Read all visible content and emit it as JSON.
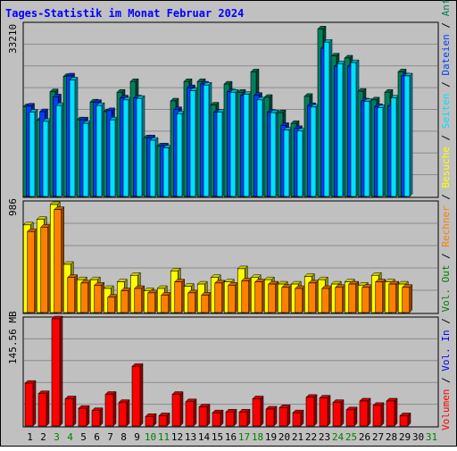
{
  "title": "Tages-Statistik im Monat Februar 2024",
  "colors": {
    "title": "#0000ff",
    "frame_bg": "#c0c0c0",
    "plot_bg": "#c0c0c0",
    "grid": "#8a8a8a",
    "anfragen": "#00805c",
    "dateien": "#0040ff",
    "seiten": "#00e0ff",
    "besuche": "#ffff00",
    "rechner": "#ff8000",
    "volumen": "#ff0000",
    "vol_in": "#0000ff",
    "vol_out": "#008000",
    "legend_sep": "#000000",
    "day_weekday": "#000000",
    "day_weekend": "#008000"
  },
  "panel_labels": {
    "top_max": "33210",
    "middle_max": "986",
    "bottom_max": "145.56 MB"
  },
  "legend": {
    "anfragen": "Anfragen",
    "dateien": "Dateien",
    "seiten": "Seiten",
    "besuche": "Besuche",
    "rechner": "Rechner",
    "vol_out": "Vol. Out",
    "vol_in": "Vol. In",
    "volumen": "Volumen",
    "sep": " / "
  },
  "chart_data": [
    {
      "type": "bar",
      "title": "Tages-Statistik im Monat Februar 2024",
      "panel": "top",
      "ylim": [
        0,
        33210
      ],
      "categories": [
        "1",
        "2",
        "3",
        "4",
        "5",
        "6",
        "7",
        "8",
        "9",
        "10",
        "11",
        "12",
        "13",
        "14",
        "15",
        "16",
        "17",
        "18",
        "19",
        "20",
        "21",
        "22",
        "23",
        "24",
        "25",
        "26",
        "27",
        "28",
        "29"
      ],
      "series": [
        {
          "name": "Anfragen",
          "values": [
            17600,
            14900,
            20500,
            23500,
            15000,
            18500,
            16600,
            20400,
            22500,
            11500,
            9900,
            18700,
            22500,
            22500,
            17900,
            22000,
            20400,
            24400,
            19400,
            16400,
            14300,
            19600,
            32800,
            27500,
            27100,
            20600,
            18900,
            20400,
            24400
          ]
        },
        {
          "name": "Dateien",
          "values": [
            17700,
            16600,
            19500,
            23600,
            15000,
            18400,
            16800,
            19300,
            19300,
            11500,
            9900,
            17000,
            21300,
            22000,
            16500,
            20500,
            19800,
            19800,
            16500,
            13900,
            13300,
            17800,
            29000,
            25500,
            25500,
            18700,
            17600,
            17700,
            23600
          ]
        },
        {
          "name": "Seiten",
          "values": [
            16500,
            14700,
            17800,
            22800,
            14300,
            17800,
            15000,
            18900,
            19200,
            11000,
            9500,
            16200,
            20700,
            21800,
            16500,
            20400,
            20000,
            18900,
            16400,
            13000,
            12800,
            17500,
            30200,
            26000,
            26200,
            18600,
            17400,
            19300,
            23600
          ]
        },
        {
          "name": "Vol. Out",
          "values": [
            0,
            0,
            0,
            0,
            0,
            0,
            0,
            0,
            0,
            0,
            0,
            0,
            0,
            0,
            0,
            0,
            0,
            0,
            0,
            0,
            0,
            0,
            0,
            0,
            0,
            0,
            0,
            0,
            0
          ]
        }
      ]
    },
    {
      "type": "bar",
      "panel": "middle",
      "ylim": [
        0,
        986
      ],
      "categories": [
        "1",
        "2",
        "3",
        "4",
        "5",
        "6",
        "7",
        "8",
        "9",
        "10",
        "11",
        "12",
        "13",
        "14",
        "15",
        "16",
        "17",
        "18",
        "19",
        "20",
        "21",
        "22",
        "23",
        "24",
        "25",
        "26",
        "27",
        "28",
        "29"
      ],
      "series": [
        {
          "name": "Besuche",
          "values": [
            800,
            850,
            986,
            440,
            300,
            300,
            220,
            280,
            340,
            200,
            220,
            380,
            240,
            260,
            320,
            280,
            400,
            320,
            300,
            260,
            260,
            330,
            300,
            260,
            280,
            250,
            340,
            280,
            260
          ]
        },
        {
          "name": "Rechner",
          "values": [
            740,
            780,
            940,
            320,
            270,
            250,
            140,
            200,
            220,
            180,
            160,
            280,
            180,
            160,
            270,
            250,
            290,
            280,
            260,
            230,
            220,
            270,
            220,
            230,
            260,
            230,
            280,
            260,
            230
          ]
        }
      ]
    },
    {
      "type": "bar",
      "panel": "bottom",
      "ylim": [
        0,
        145.56
      ],
      "categories": [
        "1",
        "2",
        "3",
        "4",
        "5",
        "6",
        "7",
        "8",
        "9",
        "10",
        "11",
        "12",
        "13",
        "14",
        "15",
        "16",
        "17",
        "18",
        "19",
        "20",
        "21",
        "22",
        "23",
        "24",
        "25",
        "26",
        "27",
        "28",
        "29"
      ],
      "series": [
        {
          "name": "Volumen",
          "values": [
            58,
            44,
            145.56,
            37,
            24,
            21,
            43,
            32,
            81,
            13,
            14,
            43,
            33,
            26,
            18,
            19,
            19,
            37,
            23,
            25,
            18,
            39,
            38,
            32,
            22,
            34,
            28,
            34,
            14
          ]
        },
        {
          "name": "Vol. In",
          "values": [
            0,
            0,
            0,
            0,
            0,
            0,
            0,
            0,
            0,
            0,
            0,
            0,
            0,
            0,
            0,
            0,
            0,
            0,
            0,
            0,
            0,
            0,
            0,
            0,
            0,
            0,
            0,
            0,
            0
          ]
        },
        {
          "name": "Vol. Out",
          "values": [
            0,
            0,
            0,
            0,
            0,
            0,
            0,
            0,
            0,
            0,
            0,
            0,
            0,
            0,
            0,
            0,
            0,
            0,
            0,
            0,
            0,
            0,
            0,
            0,
            0,
            0,
            0,
            0,
            0
          ]
        }
      ]
    }
  ],
  "x_axis": {
    "days": [
      "1",
      "2",
      "3",
      "4",
      "5",
      "6",
      "7",
      "8",
      "9",
      "10",
      "11",
      "12",
      "13",
      "14",
      "15",
      "16",
      "17",
      "18",
      "19",
      "20",
      "21",
      "22",
      "23",
      "24",
      "25",
      "26",
      "27",
      "28",
      "29",
      "30",
      "31"
    ],
    "weekend": [
      false,
      false,
      true,
      true,
      false,
      false,
      false,
      false,
      false,
      true,
      true,
      false,
      false,
      false,
      false,
      false,
      true,
      true,
      false,
      false,
      false,
      false,
      false,
      true,
      true,
      false,
      false,
      false,
      false,
      false,
      true
    ]
  }
}
